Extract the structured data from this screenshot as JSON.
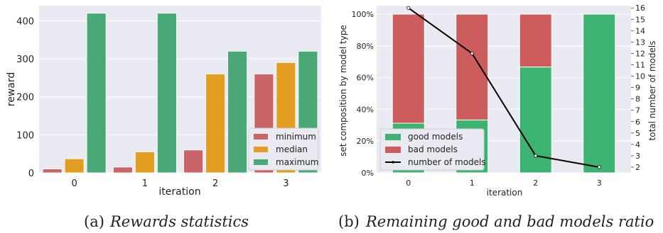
{
  "chart_data": [
    {
      "type": "bar",
      "caption_label": "(a)",
      "caption_text": "Rewards statistics",
      "xlabel": "iteration",
      "ylabel": "reward",
      "categories": [
        "0",
        "1",
        "2",
        "3"
      ],
      "ylim": [
        0,
        440
      ],
      "yticks": [
        0,
        100,
        200,
        300,
        400
      ],
      "grid": true,
      "legend_position": "lower-right",
      "series": [
        {
          "name": "minimum",
          "color": "#c96567",
          "values": [
            10,
            15,
            60,
            260
          ]
        },
        {
          "name": "median",
          "color": "#e39e21",
          "values": [
            37,
            55,
            260,
            290
          ]
        },
        {
          "name": "maximum",
          "color": "#4aa776",
          "values": [
            420,
            420,
            320,
            320
          ]
        }
      ]
    },
    {
      "type": "bar",
      "stacked": true,
      "caption_label": "(b)",
      "caption_text": "Remaining good and bad models ratio",
      "xlabel": "iteration",
      "ylabel": "set composition by model type",
      "y2label": "total number of models",
      "categories": [
        "0",
        "1",
        "2",
        "3"
      ],
      "ylim": [
        0,
        100
      ],
      "yticks": [
        "0%",
        "20%",
        "40%",
        "60%",
        "80%",
        "100%"
      ],
      "y2lim": [
        1.5,
        16.2
      ],
      "y2ticks": [
        2,
        3,
        4,
        5,
        6,
        7,
        8,
        9,
        10,
        11,
        12,
        13,
        14,
        15,
        16
      ],
      "grid": true,
      "legend_position": "lower-left",
      "series": [
        {
          "name": "good models",
          "color": "#3cb371",
          "values": [
            31.25,
            33.3,
            66.7,
            100
          ]
        },
        {
          "name": "bad models",
          "color": "#cd5c5c",
          "values": [
            68.75,
            66.7,
            33.3,
            0
          ]
        }
      ],
      "line_series": {
        "name": "number of models",
        "color": "#000000",
        "axis": "right",
        "values": [
          16,
          12,
          3,
          2
        ]
      }
    }
  ]
}
